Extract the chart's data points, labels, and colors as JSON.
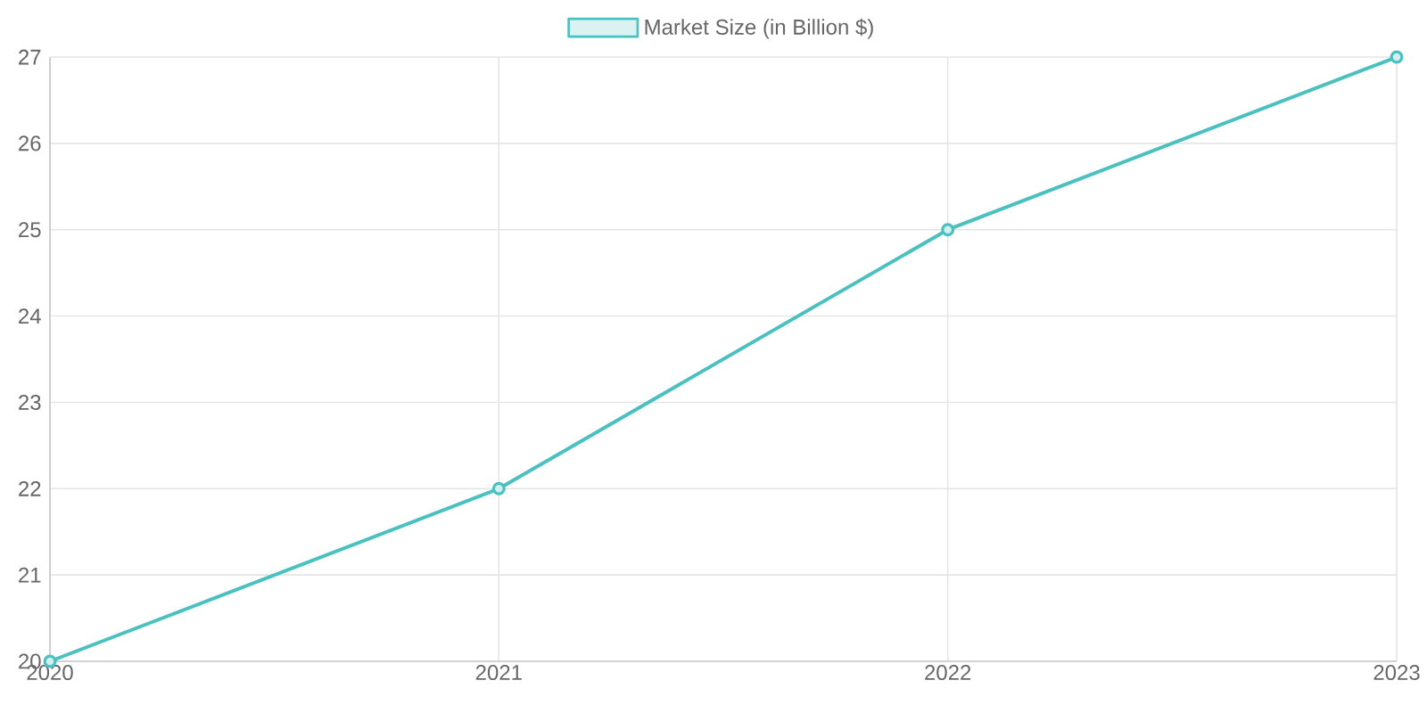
{
  "chart_data": {
    "type": "line",
    "categories": [
      "2020",
      "2021",
      "2022",
      "2023"
    ],
    "series": [
      {
        "name": "Market Size (in Billion $)",
        "color": "#4bc0c0",
        "values": [
          20,
          22,
          25,
          27
        ]
      }
    ],
    "ylim": [
      20,
      27
    ],
    "yticks": [
      20,
      21,
      22,
      23,
      24,
      25,
      26,
      27
    ],
    "grid": true,
    "legend": "top",
    "marker": "circle",
    "line_style": "solid"
  }
}
